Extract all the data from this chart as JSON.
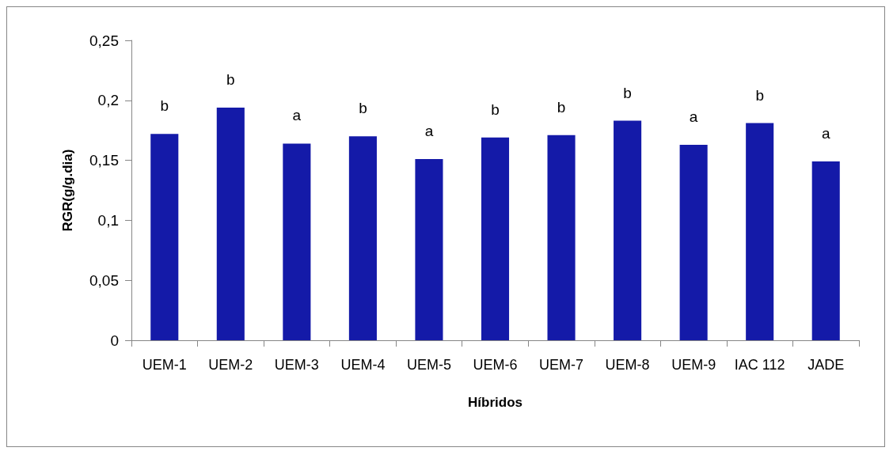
{
  "chart_data": {
    "type": "bar",
    "xlabel": "Híbridos",
    "ylabel": "RGR(g/g.dia)",
    "categories": [
      "UEM-1",
      "UEM-2",
      "UEM-3",
      "UEM-4",
      "UEM-5",
      "UEM-6",
      "UEM-7",
      "UEM-8",
      "UEM-9",
      "IAC 112",
      "JADE"
    ],
    "values": [
      0.172,
      0.194,
      0.164,
      0.17,
      0.151,
      0.169,
      0.171,
      0.183,
      0.163,
      0.181,
      0.149
    ],
    "color": "#141aa8",
    "ylim": [
      0,
      0.25
    ],
    "yticks": [
      {
        "value": 0,
        "label": "0"
      },
      {
        "value": 0.05,
        "label": "0,05"
      },
      {
        "value": 0.1,
        "label": "0,1"
      },
      {
        "value": 0.15,
        "label": "0,15"
      },
      {
        "value": 0.2,
        "label": "0,2"
      },
      {
        "value": 0.25,
        "label": "0,25"
      }
    ],
    "annotations": [
      {
        "text": "b",
        "x": "UEM-1",
        "y": 0.172
      },
      {
        "text": "b",
        "x": "UEM-2",
        "y": 0.194
      },
      {
        "text": "a",
        "x": "UEM-3",
        "y": 0.164
      },
      {
        "text": "b",
        "x": "UEM-4",
        "y": 0.17
      },
      {
        "text": "a",
        "x": "UEM-5",
        "y": 0.151
      },
      {
        "text": "b",
        "x": "UEM-6",
        "y": 0.169
      },
      {
        "text": "b",
        "x": "UEM-7",
        "y": 0.171
      },
      {
        "text": "b",
        "x": "UEM-8",
        "y": 0.183
      },
      {
        "text": "a",
        "x": "UEM-9",
        "y": 0.163
      },
      {
        "text": "b",
        "x": "IAC 112",
        "y": 0.181
      },
      {
        "text": "a",
        "x": "JADE",
        "y": 0.149
      }
    ]
  }
}
